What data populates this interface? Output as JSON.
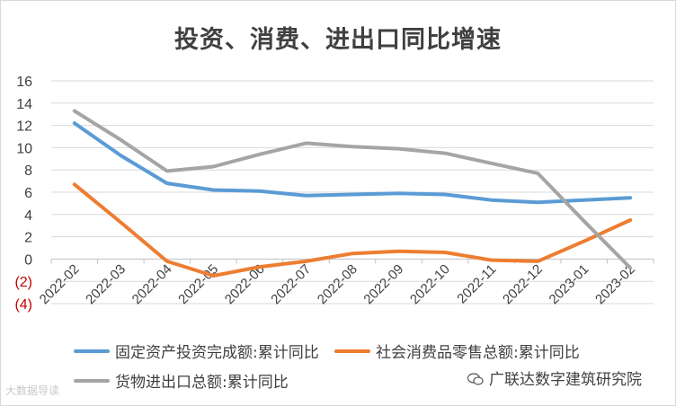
{
  "chart_data": {
    "type": "line",
    "title": "投资、消费、进出口同比增速",
    "categories": [
      "2022-02",
      "2022-03",
      "2022-04",
      "2022-05",
      "2022-06",
      "2022-07",
      "2022-08",
      "2022-09",
      "2022-10",
      "2022-11",
      "2022-12",
      "2023-01",
      "2023-02"
    ],
    "y_tick_labels": [
      "16",
      "14",
      "12",
      "10",
      "8",
      "6",
      "4",
      "2",
      "0",
      "(2)",
      "(4)"
    ],
    "ylim": [
      -4,
      16
    ],
    "grid": true,
    "legend_position": "bottom",
    "series": [
      {
        "name": "固定资产投资完成额:累计同比",
        "color": "#5b9bd5",
        "values": [
          12.2,
          9.3,
          6.8,
          6.2,
          6.1,
          5.7,
          5.8,
          5.9,
          5.8,
          5.3,
          5.1,
          5.3,
          5.5
        ]
      },
      {
        "name": "社会消费品零售总额:累计同比",
        "color": "#ed7d31",
        "values": [
          6.7,
          3.3,
          -0.2,
          -1.5,
          -0.7,
          -0.2,
          0.5,
          0.7,
          0.6,
          -0.1,
          -0.2,
          1.6,
          3.5
        ]
      },
      {
        "name": "货物进出口总额:累计同比",
        "color": "#a5a5a5",
        "values": [
          13.3,
          10.7,
          7.9,
          8.3,
          9.4,
          10.4,
          10.1,
          9.9,
          9.5,
          8.6,
          7.7,
          3.4,
          -0.8
        ]
      }
    ]
  },
  "watermarks": {
    "left": "大数据导读",
    "right": "广联达数字建筑研究院"
  }
}
